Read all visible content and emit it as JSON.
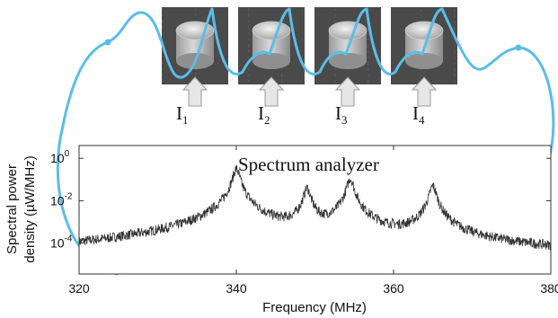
{
  "resonators": [
    {
      "label": "I",
      "sub": "1"
    },
    {
      "label": "I",
      "sub": "2"
    },
    {
      "label": "I",
      "sub": "3"
    },
    {
      "label": "I",
      "sub": "4"
    }
  ],
  "chart_data": {
    "type": "line",
    "title": "Spectrum analyzer",
    "xlabel": "Frequency (MHz)",
    "ylabel_lines": [
      "Spectral power",
      "density (µW/MHz)"
    ],
    "x_ticks": [
      "320",
      "340",
      "360",
      "380"
    ],
    "y_ticks": [
      {
        "base": "10",
        "exp": "0",
        "value": 1
      },
      {
        "base": "10",
        "exp": "-2",
        "value": 0.01
      },
      {
        "base": "10",
        "exp": "-4",
        "value": 0.0001
      }
    ],
    "xlim": [
      320,
      380
    ],
    "ylim": [
      3.5e-06,
      4
    ],
    "y_scale": "log",
    "grid": false,
    "series_color": "#333333",
    "noise_floor": 3e-06,
    "peaks": [
      {
        "x": 340,
        "y": 0.32
      },
      {
        "x": 349,
        "y": 0.038
      },
      {
        "x": 354.5,
        "y": 0.11
      },
      {
        "x": 365,
        "y": 0.05
      }
    ]
  },
  "colors": {
    "wire": "#5bbde8",
    "photo_bg": "#4a4a4a",
    "arrow_fill": "#e6e6e6"
  }
}
